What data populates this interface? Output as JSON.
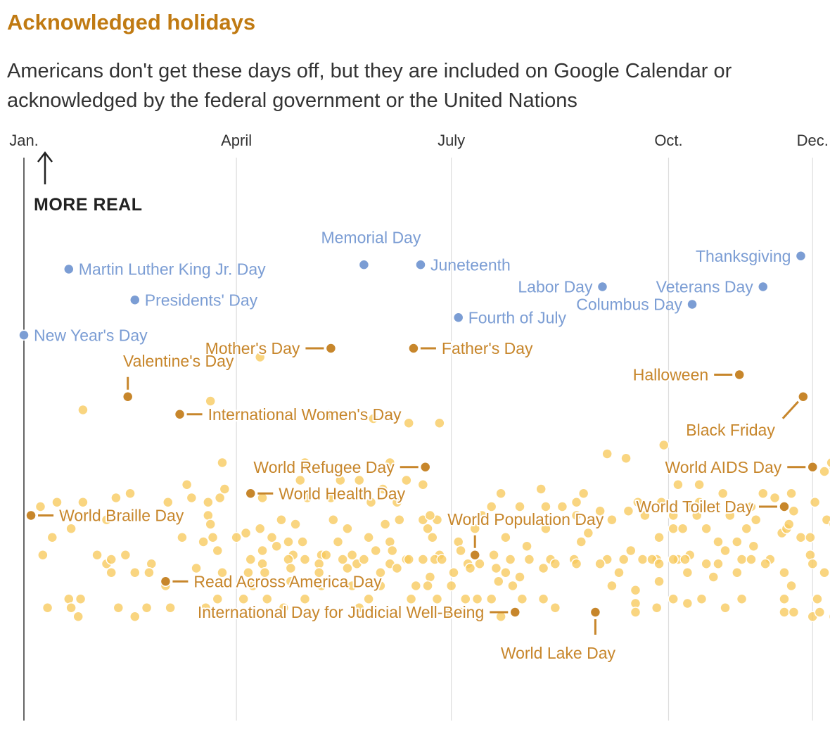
{
  "title": "Acknowledged holidays",
  "subtitle": "Americans don't get these days off, but they are included on Google Calendar or acknowledged by the federal government or the United Nations",
  "colors": {
    "federal": "#7b9dd4",
    "highlight": "#c7862b",
    "background_dot": "#f7c95c",
    "title": "#c07a12",
    "grid": "#dddddd",
    "axis": "#333333"
  },
  "chart_data": {
    "type": "scatter",
    "title": "Acknowledged holidays",
    "xlabel": "",
    "ylabel": "MORE REAL",
    "x_axis_ticks": [
      {
        "label": "Jan.",
        "day": 1
      },
      {
        "label": "April",
        "day": 91
      },
      {
        "label": "July",
        "day": 182
      },
      {
        "label": "Oct.",
        "day": 274
      },
      {
        "label": "Dec.",
        "day": 335
      }
    ],
    "xlim": [
      1,
      344
    ],
    "ylim": [
      0,
      100
    ],
    "arrow_label": "MORE REAL",
    "federal_holidays": [
      {
        "name": "New Year's Day",
        "day": 1,
        "realness": 75
      },
      {
        "name": "Martin Luther King Jr. Day",
        "day": 20,
        "realness": 90
      },
      {
        "name": "Presidents' Day",
        "day": 48,
        "realness": 83
      },
      {
        "name": "Memorial Day",
        "day": 145,
        "realness": 91
      },
      {
        "name": "Juneteenth",
        "day": 169,
        "realness": 91
      },
      {
        "name": "Fourth of July",
        "day": 185,
        "realness": 79
      },
      {
        "name": "Labor Day",
        "day": 246,
        "realness": 86
      },
      {
        "name": "Columbus Day",
        "day": 284,
        "realness": 82
      },
      {
        "name": "Veterans Day",
        "day": 314,
        "realness": 86
      },
      {
        "name": "Thanksgiving",
        "day": 330,
        "realness": 93
      }
    ],
    "labeled_observances": [
      {
        "name": "Mother's Day",
        "day": 131,
        "realness": 72
      },
      {
        "name": "Father's Day",
        "day": 166,
        "realness": 72
      },
      {
        "name": "Valentine's Day",
        "day": 45,
        "realness": 61
      },
      {
        "name": "International Women's Day",
        "day": 67,
        "realness": 57
      },
      {
        "name": "Halloween",
        "day": 304,
        "realness": 66
      },
      {
        "name": "Black Friday",
        "day": 331,
        "realness": 61
      },
      {
        "name": "World AIDS Day",
        "day": 335,
        "realness": 45
      },
      {
        "name": "World Refugee Day",
        "day": 171,
        "realness": 45
      },
      {
        "name": "World Health Day",
        "day": 97,
        "realness": 39
      },
      {
        "name": "World Braille Day",
        "day": 4,
        "realness": 34
      },
      {
        "name": "World Toilet Day",
        "day": 323,
        "realness": 36
      },
      {
        "name": "World Population Day",
        "day": 192,
        "realness": 25
      },
      {
        "name": "Read Across America Day",
        "day": 61,
        "realness": 19
      },
      {
        "name": "International Day for Judicial Well-Being",
        "day": 209,
        "realness": 12
      },
      {
        "name": "World Lake Day",
        "day": 243,
        "realness": 12
      }
    ],
    "other_observances": [
      [
        26,
        58
      ],
      [
        101,
        70
      ],
      [
        80,
        60
      ],
      [
        130,
        57
      ],
      [
        149,
        56
      ],
      [
        164,
        55
      ],
      [
        177,
        55
      ],
      [
        272,
        50
      ],
      [
        256,
        47
      ],
      [
        248,
        48
      ],
      [
        85,
        46
      ],
      [
        120,
        46
      ],
      [
        156,
        46
      ],
      [
        340,
        44
      ],
      [
        344,
        45
      ],
      [
        343,
        46
      ],
      [
        70,
        41
      ],
      [
        118,
        42
      ],
      [
        135,
        42
      ],
      [
        143,
        42
      ],
      [
        153,
        40
      ],
      [
        163,
        42
      ],
      [
        86,
        40
      ],
      [
        170,
        41
      ],
      [
        278,
        41
      ],
      [
        287,
        41
      ],
      [
        72,
        38
      ],
      [
        84,
        38
      ],
      [
        131,
        38
      ],
      [
        144,
        39
      ],
      [
        203,
        39
      ],
      [
        220,
        40
      ],
      [
        238,
        39
      ],
      [
        297,
        39
      ],
      [
        314,
        39
      ],
      [
        319,
        38
      ],
      [
        326,
        39
      ],
      [
        8,
        36
      ],
      [
        15,
        37
      ],
      [
        26,
        37
      ],
      [
        40,
        38
      ],
      [
        46,
        39
      ],
      [
        62,
        37
      ],
      [
        79,
        37
      ],
      [
        102,
        38
      ],
      [
        121,
        38
      ],
      [
        148,
        37
      ],
      [
        159,
        37
      ],
      [
        199,
        36
      ],
      [
        211,
        36
      ],
      [
        222,
        36
      ],
      [
        229,
        36
      ],
      [
        235,
        37
      ],
      [
        245,
        35
      ],
      [
        257,
        35
      ],
      [
        261,
        37
      ],
      [
        271,
        37
      ],
      [
        283,
        36
      ],
      [
        287,
        37
      ],
      [
        294,
        36
      ],
      [
        309,
        36
      ],
      [
        327,
        35
      ],
      [
        336,
        37
      ],
      [
        18,
        34
      ],
      [
        36,
        33
      ],
      [
        79,
        34
      ],
      [
        110,
        33
      ],
      [
        132,
        33
      ],
      [
        160,
        33
      ],
      [
        170,
        33
      ],
      [
        176,
        33
      ],
      [
        195,
        34
      ],
      [
        235,
        34
      ],
      [
        250,
        33
      ],
      [
        264,
        34
      ],
      [
        276,
        34
      ],
      [
        286,
        34
      ],
      [
        300,
        34
      ],
      [
        311,
        33
      ],
      [
        341,
        33
      ],
      [
        344,
        32
      ],
      [
        21,
        31
      ],
      [
        80,
        32
      ],
      [
        81,
        29
      ],
      [
        95,
        30
      ],
      [
        101,
        31
      ],
      [
        116,
        32
      ],
      [
        138,
        31
      ],
      [
        154,
        32
      ],
      [
        172,
        31
      ],
      [
        173,
        34
      ],
      [
        192,
        31
      ],
      [
        222,
        31
      ],
      [
        240,
        30
      ],
      [
        276,
        31
      ],
      [
        280,
        31
      ],
      [
        290,
        31
      ],
      [
        307,
        31
      ],
      [
        322,
        30
      ],
      [
        324,
        31
      ],
      [
        325,
        32
      ],
      [
        13,
        29
      ],
      [
        68,
        29
      ],
      [
        77,
        28
      ],
      [
        91,
        29
      ],
      [
        106,
        29
      ],
      [
        113,
        28
      ],
      [
        119,
        28
      ],
      [
        134,
        28
      ],
      [
        147,
        29
      ],
      [
        156,
        28
      ],
      [
        174,
        29
      ],
      [
        185,
        28
      ],
      [
        205,
        29
      ],
      [
        214,
        27
      ],
      [
        237,
        28
      ],
      [
        270,
        29
      ],
      [
        295,
        28
      ],
      [
        303,
        28
      ],
      [
        310,
        27
      ],
      [
        330,
        29
      ],
      [
        334,
        29
      ],
      [
        345,
        28
      ],
      [
        9,
        25
      ],
      [
        32,
        25
      ],
      [
        44,
        25
      ],
      [
        83,
        26
      ],
      [
        97,
        24
      ],
      [
        102,
        26
      ],
      [
        108,
        27
      ],
      [
        115,
        25
      ],
      [
        127,
        25
      ],
      [
        129,
        25
      ],
      [
        140,
        25
      ],
      [
        150,
        26
      ],
      [
        157,
        26
      ],
      [
        163,
        24
      ],
      [
        177,
        25
      ],
      [
        186,
        26
      ],
      [
        200,
        25
      ],
      [
        207,
        24
      ],
      [
        224,
        24
      ],
      [
        234,
        24
      ],
      [
        248,
        24
      ],
      [
        258,
        26
      ],
      [
        263,
        24
      ],
      [
        269,
        24
      ],
      [
        278,
        24
      ],
      [
        283,
        25
      ],
      [
        298,
        26
      ],
      [
        317,
        24
      ],
      [
        334,
        25
      ],
      [
        345,
        27
      ],
      [
        36,
        23
      ],
      [
        38,
        24
      ],
      [
        55,
        23
      ],
      [
        102,
        23
      ],
      [
        113,
        24
      ],
      [
        120,
        24
      ],
      [
        126,
        23
      ],
      [
        136,
        24
      ],
      [
        142,
        23
      ],
      [
        145,
        24
      ],
      [
        156,
        23
      ],
      [
        164,
        24
      ],
      [
        170,
        24
      ],
      [
        175,
        24
      ],
      [
        178,
        24
      ],
      [
        189,
        23
      ],
      [
        194,
        23
      ],
      [
        201,
        22
      ],
      [
        215,
        24
      ],
      [
        221,
        22
      ],
      [
        226,
        23
      ],
      [
        235,
        23
      ],
      [
        245,
        23
      ],
      [
        255,
        24
      ],
      [
        267,
        24
      ],
      [
        270,
        23
      ],
      [
        276,
        24
      ],
      [
        281,
        24
      ],
      [
        290,
        23
      ],
      [
        295,
        23
      ],
      [
        305,
        24
      ],
      [
        309,
        24
      ],
      [
        315,
        23
      ],
      [
        335,
        23
      ],
      [
        345,
        24
      ],
      [
        38,
        21
      ],
      [
        48,
        21
      ],
      [
        54,
        21
      ],
      [
        74,
        22
      ],
      [
        85,
        21
      ],
      [
        96,
        21
      ],
      [
        103,
        21
      ],
      [
        114,
        22
      ],
      [
        126,
        21
      ],
      [
        138,
        22
      ],
      [
        152,
        21
      ],
      [
        159,
        22
      ],
      [
        173,
        20
      ],
      [
        183,
        21
      ],
      [
        190,
        22
      ],
      [
        205,
        21
      ],
      [
        211,
        20
      ],
      [
        253,
        21
      ],
      [
        282,
        21
      ],
      [
        293,
        20
      ],
      [
        303,
        21
      ],
      [
        323,
        21
      ],
      [
        340,
        21
      ],
      [
        345,
        20
      ],
      [
        61,
        18
      ],
      [
        98,
        18
      ],
      [
        114,
        19
      ],
      [
        127,
        18
      ],
      [
        140,
        18
      ],
      [
        152,
        18
      ],
      [
        167,
        18
      ],
      [
        172,
        18
      ],
      [
        182,
        18
      ],
      [
        202,
        19
      ],
      [
        208,
        18
      ],
      [
        250,
        18
      ],
      [
        260,
        17
      ],
      [
        270,
        19
      ],
      [
        326,
        18
      ],
      [
        345,
        18
      ],
      [
        20,
        15
      ],
      [
        25,
        15
      ],
      [
        83,
        15
      ],
      [
        94,
        15
      ],
      [
        104,
        15
      ],
      [
        120,
        15
      ],
      [
        147,
        15
      ],
      [
        165,
        15
      ],
      [
        176,
        15
      ],
      [
        188,
        15
      ],
      [
        193,
        15
      ],
      [
        199,
        15
      ],
      [
        212,
        15
      ],
      [
        221,
        15
      ],
      [
        276,
        15
      ],
      [
        260,
        14
      ],
      [
        288,
        15
      ],
      [
        282,
        14
      ],
      [
        305,
        15
      ],
      [
        323,
        15
      ],
      [
        337,
        15
      ],
      [
        345,
        14
      ],
      [
        11,
        13
      ],
      [
        21,
        13
      ],
      [
        24,
        11
      ],
      [
        41,
        13
      ],
      [
        48,
        11
      ],
      [
        53,
        13
      ],
      [
        63,
        13
      ],
      [
        78,
        13
      ],
      [
        111,
        13
      ],
      [
        143,
        13
      ],
      [
        181,
        12
      ],
      [
        186,
        12
      ],
      [
        203,
        11
      ],
      [
        226,
        13
      ],
      [
        260,
        12
      ],
      [
        269,
        13
      ],
      [
        298,
        13
      ],
      [
        323,
        12
      ],
      [
        327,
        12
      ],
      [
        335,
        11
      ],
      [
        338,
        12
      ],
      [
        344,
        11
      ]
    ]
  }
}
